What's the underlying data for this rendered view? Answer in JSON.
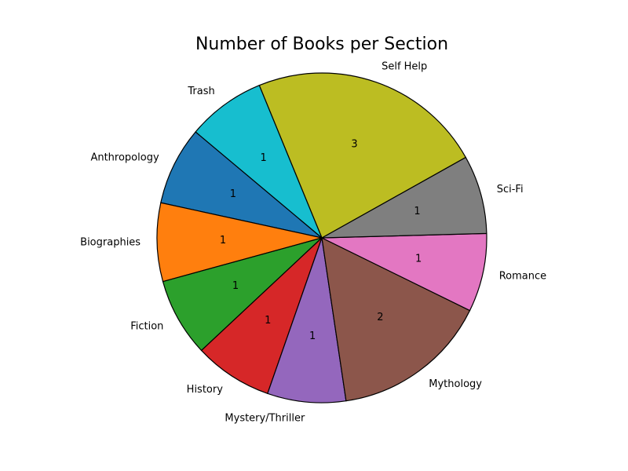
{
  "chart_data": {
    "type": "pie",
    "title": "Number of Books per Section",
    "categories": [
      "Anthropology",
      "Biographies",
      "Fiction",
      "History",
      "Mystery/Thriller",
      "Mythology",
      "Romance",
      "Sci-Fi",
      "Self Help",
      "Trash"
    ],
    "values": [
      1,
      1,
      1,
      1,
      1,
      2,
      1,
      1,
      3,
      1
    ],
    "colors": [
      "#1f77b4",
      "#ff7f0e",
      "#2ca02c",
      "#d62728",
      "#9467bd",
      "#8c564b",
      "#e377c2",
      "#7f7f7f",
      "#bcbd22",
      "#17becf"
    ],
    "start_angle_deg": 140,
    "direction": "counterclockwise",
    "legend": "none"
  }
}
